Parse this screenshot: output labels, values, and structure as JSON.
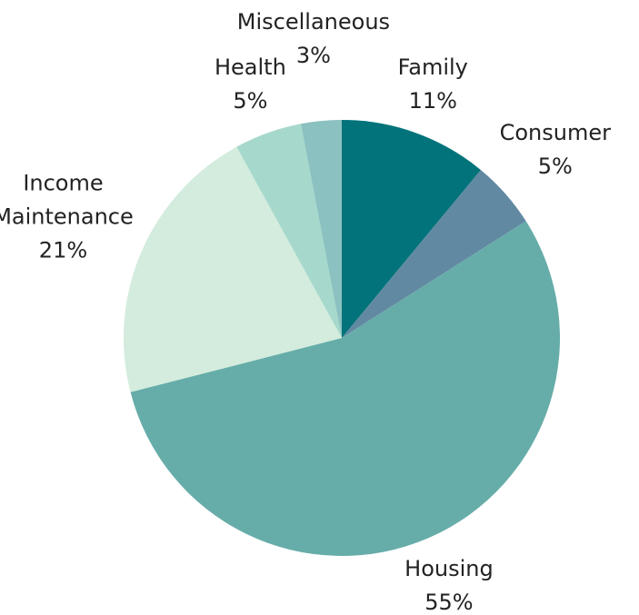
{
  "chart_data": {
    "type": "pie",
    "categories": [
      "Family",
      "Consumer",
      "Housing",
      "Income Maintenance",
      "Health",
      "Miscellaneous"
    ],
    "values": [
      11,
      5,
      55,
      21,
      5,
      3
    ],
    "value_labels": [
      "11%",
      "5%",
      "55%",
      "21%",
      "5%",
      "3%"
    ],
    "colors": [
      "#02737a",
      "#6289a2",
      "#66ada9",
      "#d3ecdd",
      "#a6d8cc",
      "#8bc1c0"
    ]
  }
}
